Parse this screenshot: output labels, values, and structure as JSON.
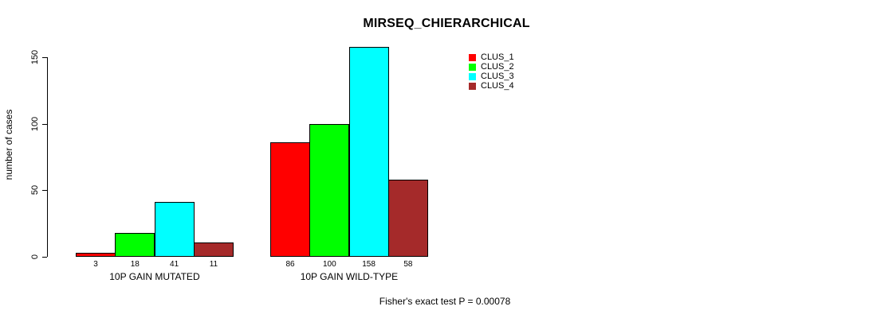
{
  "chart_data": {
    "type": "bar",
    "title": "MIRSEQ_CHIERARCHICAL",
    "ylabel": "number of cases",
    "xlabel": "",
    "categories": [
      "10P GAIN MUTATED",
      "10P GAIN WILD-TYPE"
    ],
    "series": [
      {
        "name": "CLUS_1",
        "color": "#FF0000",
        "values": [
          3,
          86
        ]
      },
      {
        "name": "CLUS_2",
        "color": "#00FF00",
        "values": [
          18,
          100
        ]
      },
      {
        "name": "CLUS_3",
        "color": "#00FFFF",
        "values": [
          41,
          158
        ]
      },
      {
        "name": "CLUS_4",
        "color": "#A52A2A",
        "values": [
          11,
          58
        ]
      }
    ],
    "bar_value_labels_shown": true,
    "yticks": [
      0,
      50,
      100,
      150
    ],
    "ylim": [
      0,
      158
    ],
    "grid": false,
    "legend_position": "top-right",
    "annotation": "Fisher's exact test P = 0.00078"
  }
}
